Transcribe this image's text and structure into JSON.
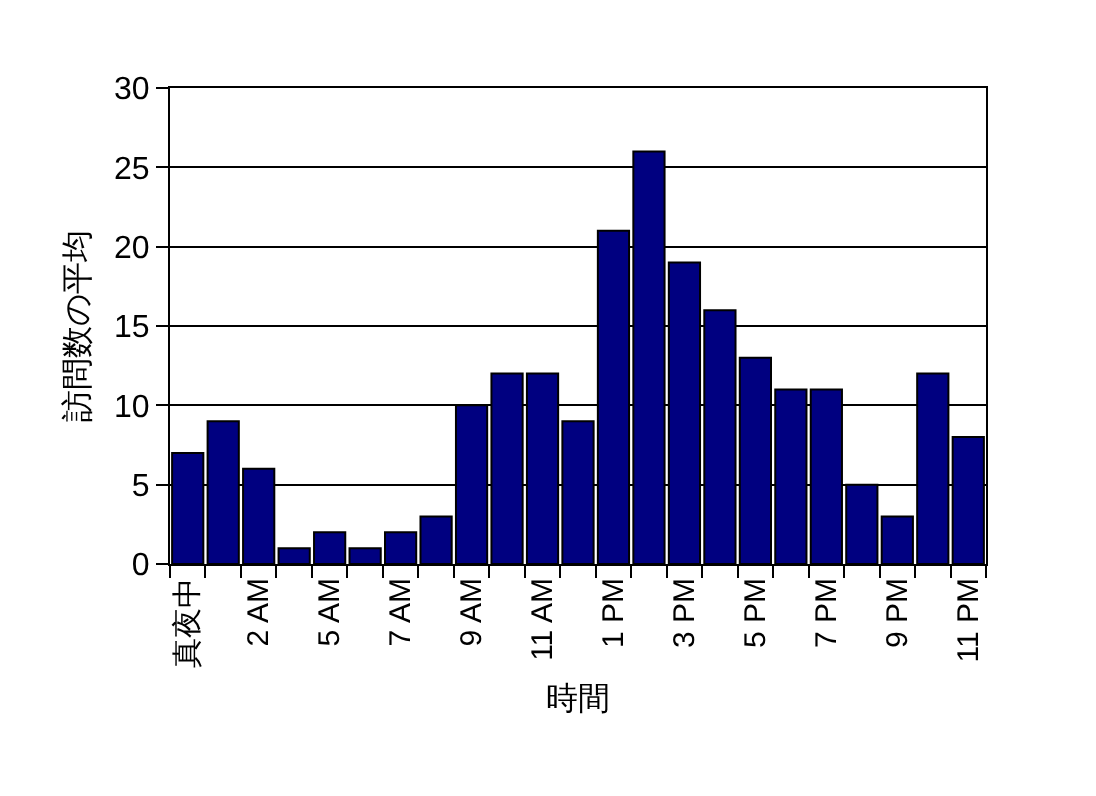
{
  "chart_data": {
    "type": "bar",
    "categories": [
      "真夜中",
      null,
      "2 AM",
      null,
      "5 AM",
      null,
      "7 AM",
      null,
      "9 AM",
      null,
      "11 AM",
      null,
      "1 PM",
      null,
      "3 PM",
      null,
      "5 PM",
      null,
      "7 PM",
      null,
      "9 PM",
      null,
      "11 PM"
    ],
    "values": [
      7,
      9,
      6,
      1,
      2,
      1,
      2,
      3,
      10,
      12,
      12,
      9,
      21,
      26,
      19,
      16,
      13,
      11,
      11,
      5,
      3,
      12,
      8
    ],
    "color": "#000080",
    "xlabel": "時間",
    "ylabel": "訪問数の平均",
    "ylim": [
      0,
      30
    ],
    "yticks": [
      0,
      5,
      10,
      15,
      20,
      25,
      30
    ],
    "grid": "y"
  }
}
